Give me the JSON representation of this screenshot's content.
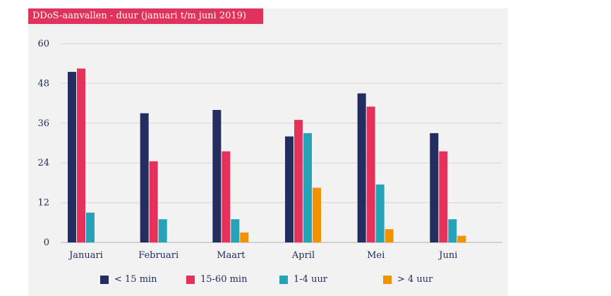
{
  "chart_data": {
    "type": "bar",
    "title": "DDoS-aanvallen - duur (januari t/m juni 2019)",
    "categories": [
      "Januari",
      "Februari",
      "Maart",
      "April",
      "Mei",
      "Juni"
    ],
    "series": [
      {
        "name": "< 15 min",
        "color": "#232d5f",
        "values": [
          51.5,
          39,
          40,
          32,
          45,
          33
        ]
      },
      {
        "name": "15-60 min",
        "color": "#e6325a",
        "values": [
          52.5,
          24.5,
          27.5,
          37,
          41,
          27.5
        ]
      },
      {
        "name": "1-4 uur",
        "color": "#26a3b6",
        "values": [
          9,
          7,
          7,
          33,
          17.5,
          7
        ]
      },
      {
        "name": "> 4 uur",
        "color": "#f39200",
        "values": [
          0,
          0,
          3,
          16.5,
          4,
          2
        ]
      }
    ],
    "yticks": [
      "0",
      "12",
      "24",
      "36",
      "48",
      "60"
    ],
    "ylim": [
      0,
      60
    ],
    "grid": true,
    "legend_position": "bottom"
  }
}
